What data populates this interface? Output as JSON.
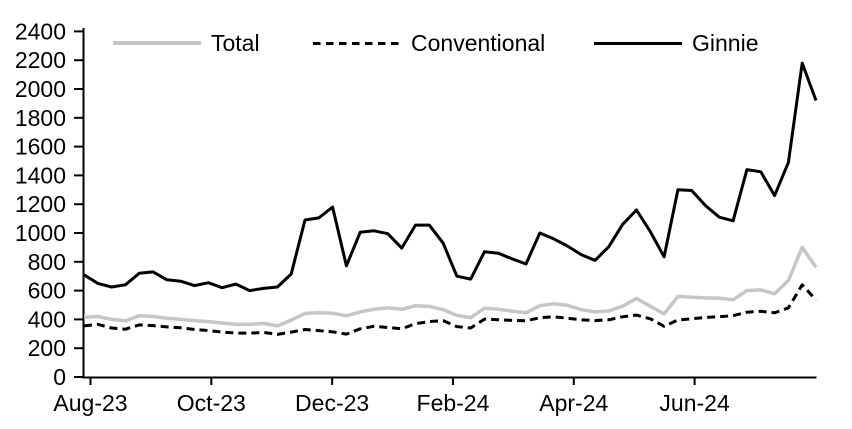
{
  "chart_data": {
    "type": "line",
    "title": "",
    "xlabel": "",
    "ylabel": "",
    "x_tick_labels": [
      "Aug-23",
      "Oct-23",
      "Dec-23",
      "Feb-24",
      "Apr-24",
      "Jun-24"
    ],
    "y_tick_labels": [
      "0",
      "200",
      "400",
      "600",
      "800",
      "1000",
      "1200",
      "1400",
      "1600",
      "1800",
      "2000",
      "2200",
      "2400"
    ],
    "y_ticks": [
      0,
      200,
      400,
      600,
      800,
      1000,
      1200,
      1400,
      1600,
      1800,
      2000,
      2200,
      2400
    ],
    "ylim": [
      0,
      2400
    ],
    "x_unit": "weekly observations, Aug-2023 through Aug-2024",
    "grid": false,
    "legend_position": "top",
    "axis_color": "#000000",
    "background_color": "#ffffff",
    "series": [
      {
        "name": "Total",
        "color": "#c6c6c6",
        "style": "solid",
        "values": [
          415,
          420,
          400,
          390,
          425,
          420,
          408,
          400,
          392,
          385,
          375,
          365,
          365,
          372,
          355,
          395,
          442,
          447,
          443,
          425,
          452,
          470,
          480,
          470,
          495,
          490,
          468,
          428,
          412,
          478,
          470,
          457,
          446,
          495,
          508,
          498,
          468,
          452,
          458,
          492,
          545,
          492,
          438,
          560,
          554,
          549,
          548,
          536,
          600,
          605,
          578,
          670,
          900,
          762
        ]
      },
      {
        "name": "Conventional",
        "color": "#000000",
        "style": "dashed",
        "values": [
          355,
          366,
          340,
          332,
          362,
          357,
          348,
          342,
          330,
          323,
          312,
          305,
          304,
          310,
          296,
          312,
          330,
          322,
          313,
          298,
          335,
          352,
          344,
          335,
          370,
          385,
          392,
          350,
          340,
          402,
          398,
          393,
          390,
          412,
          418,
          408,
          397,
          392,
          397,
          418,
          430,
          404,
          352,
          396,
          404,
          414,
          419,
          426,
          450,
          456,
          446,
          480,
          640,
          535
        ]
      },
      {
        "name": "Ginnie",
        "color": "#000000",
        "style": "solid",
        "values": [
          710,
          650,
          625,
          640,
          720,
          730,
          675,
          665,
          635,
          655,
          620,
          645,
          600,
          615,
          625,
          715,
          1090,
          1105,
          1180,
          772,
          1005,
          1015,
          995,
          895,
          1055,
          1055,
          930,
          700,
          680,
          870,
          860,
          820,
          785,
          1000,
          960,
          910,
          850,
          810,
          905,
          1060,
          1160,
          1010,
          835,
          1300,
          1295,
          1190,
          1110,
          1085,
          1440,
          1425,
          1260,
          1490,
          2180,
          1920
        ]
      }
    ]
  }
}
